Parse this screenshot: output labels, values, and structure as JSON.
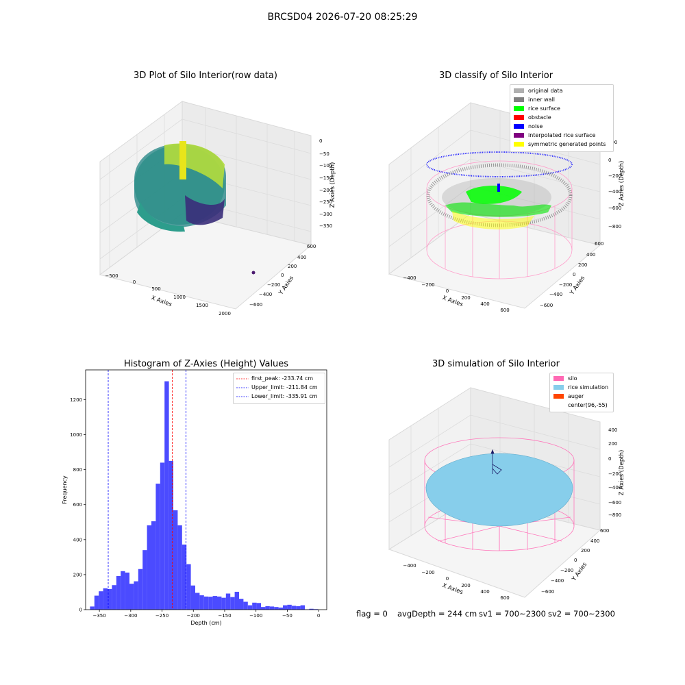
{
  "figure": {
    "suptitle": "BRCSD04 2026-07-20 08:25:29",
    "footer": {
      "flag": "flag = 0",
      "avg_depth": "avgDepth = 244 cm",
      "sv1": "sv1 = 700~2300",
      "sv2": "sv2 = 700~2300"
    }
  },
  "colors": {
    "original_data": "#b0b0b0",
    "inner_wall": "#808080",
    "rice_surface": "#00ff00",
    "obstacle": "#ff0000",
    "noise": "#0000ff",
    "interpolated_rice_surface": "#800080",
    "symmetric_generated_points": "#ffff00",
    "silo": "#ff69b4",
    "rice_simulation": "#87ceeb",
    "auger": "#ff4500",
    "histogram_bar": "#4b4bff"
  },
  "plot1": {
    "title": "3D Plot of Silo Interior(row data)",
    "xlabel": "X Axies",
    "ylabel": "Y Axies",
    "zlabel": "Z Axies (Depth)",
    "xticks": [
      "−500",
      "0",
      "500",
      "1000",
      "1500",
      "2000"
    ],
    "yticks": [
      "600",
      "400",
      "200",
      "0",
      "−200",
      "−400",
      "−600"
    ],
    "zticks": [
      "0",
      "−50",
      "−100",
      "−150",
      "−200",
      "−250",
      "−300",
      "−350"
    ]
  },
  "plot2": {
    "title": "3D classify of Silo Interior",
    "xlabel": "X Axies",
    "ylabel": "Y Axies",
    "zlabel": "Z Axies (Depth)",
    "xticks": [
      "−400",
      "−200",
      "0",
      "200",
      "400",
      "600"
    ],
    "yticks": [
      "600",
      "400",
      "200",
      "0",
      "−200",
      "−400",
      "−600"
    ],
    "zticks": [
      "200",
      "0",
      "−200",
      "−400",
      "−600",
      "−800"
    ],
    "legend": [
      {
        "label": "original data",
        "color": "#b0b0b0"
      },
      {
        "label": "inner wall",
        "color": "#808080"
      },
      {
        "label": "rice surface",
        "color": "#00ff00"
      },
      {
        "label": "obstacle",
        "color": "#ff0000"
      },
      {
        "label": "noise",
        "color": "#0000ff"
      },
      {
        "label": "interpolated rice surface",
        "color": "#800080"
      },
      {
        "label": "symmetric generated points",
        "color": "#ffff00"
      }
    ]
  },
  "plot4": {
    "title": "3D simulation of Silo Interior",
    "xlabel": "X Axies",
    "ylabel": "Y Axies",
    "zlabel": "Z Axies (Depth)",
    "xticks": [
      "−400",
      "−200",
      "0",
      "200",
      "400",
      "600"
    ],
    "yticks": [
      "600",
      "400",
      "200",
      "0",
      "−200",
      "−400",
      "−600"
    ],
    "zticks": [
      "400",
      "200",
      "0",
      "−200",
      "−400",
      "−600",
      "−800"
    ],
    "legend": [
      {
        "label": "silo",
        "color": "#ff69b4"
      },
      {
        "label": "rice simulation",
        "color": "#87ceeb"
      },
      {
        "label": "auger",
        "color": "#ff4500"
      },
      {
        "label": "center(96,-55)",
        "color": ""
      }
    ]
  },
  "chart_data": {
    "type": "bar",
    "title": "Histogram of Z-Axies (Height) Values",
    "xlabel": "Depth (cm)",
    "ylabel": "Frequency",
    "xlim": [
      -372,
      13
    ],
    "ylim": [
      0,
      1370
    ],
    "bin_width": 7,
    "bin_starts": [
      -365,
      -358,
      -351,
      -344,
      -337,
      -330,
      -323,
      -316,
      -309,
      -302,
      -295,
      -288,
      -281,
      -274,
      -267,
      -260,
      -253,
      -246,
      -239,
      -232,
      -225,
      -218,
      -211,
      -204,
      -197,
      -190,
      -183,
      -176,
      -169,
      -162,
      -155,
      -148,
      -141,
      -134,
      -127,
      -120,
      -113,
      -106,
      -99,
      -92,
      -85,
      -78,
      -71,
      -64,
      -57,
      -50,
      -43,
      -36,
      -29,
      -22,
      -15,
      -8,
      -1
    ],
    "values": [
      18,
      80,
      105,
      122,
      118,
      140,
      192,
      220,
      212,
      148,
      162,
      232,
      340,
      482,
      505,
      720,
      840,
      1305,
      850,
      568,
      482,
      372,
      260,
      138,
      96,
      82,
      75,
      74,
      78,
      75,
      68,
      92,
      72,
      102,
      62,
      45,
      25,
      40,
      38,
      15,
      20,
      18,
      15,
      12,
      25,
      28,
      22,
      20,
      25,
      2,
      5,
      3,
      0
    ],
    "xticks": [
      -350,
      -300,
      -250,
      -200,
      -150,
      -100,
      -50,
      0
    ],
    "xtick_labels": [
      "−350",
      "−300",
      "−250",
      "−200",
      "−150",
      "−100",
      "−50",
      "0"
    ],
    "yticks": [
      0,
      200,
      400,
      600,
      800,
      1000,
      1200
    ],
    "ytick_labels": [
      "0",
      "200",
      "400",
      "600",
      "800",
      "1000",
      "1200"
    ],
    "vlines": [
      {
        "x": -233.74,
        "color": "#ff0000",
        "label": "first_peak: -233.74 cm"
      },
      {
        "x": -211.84,
        "color": "#0000ff",
        "label": "Upper_limit: -211.84 cm"
      },
      {
        "x": -335.91,
        "color": "#0000ff",
        "label": "Lower_limit: -335.91 cm"
      }
    ],
    "legend_position": "top-right",
    "grid": false
  }
}
